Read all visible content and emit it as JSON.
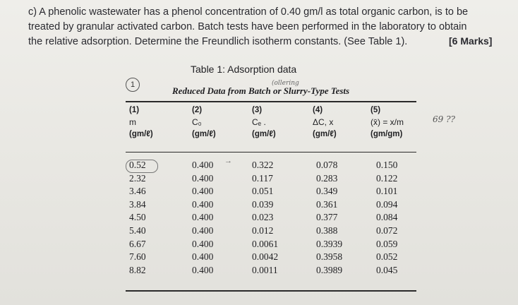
{
  "question": {
    "line1": "c) A phenolic wastewater has a phenol concentration of 0.40 gm/l as total organic carbon, is to be",
    "line2": "treated by granular activated carbon. Batch tests have been performed in the laboratory to obtain",
    "line3": "the relative adsorption. Determine the Freundlich isotherm constants. (See Table 1).",
    "marks": "[6 Marks]"
  },
  "table": {
    "title": "Table 1: Adsorption data",
    "caption": "Reduced Data from Batch or Slurry-Type Tests",
    "headers": [
      {
        "num": "(1)",
        "sym": "m",
        "unit": "(gm/ℓ)"
      },
      {
        "num": "(2)",
        "sym": "C₀",
        "unit": "(gm/ℓ)"
      },
      {
        "num": "(3)",
        "sym": "Cₑ .",
        "unit": "(gm/ℓ)"
      },
      {
        "num": "(4)",
        "sym": "ΔC, x",
        "unit": "(gm/ℓ)"
      },
      {
        "num": "(5)",
        "sym": "(x̄) = x/m",
        "unit": "(gm/gm)"
      }
    ],
    "rows": [
      [
        "0.52",
        "0.400",
        "0.322",
        "0.078",
        "0.150"
      ],
      [
        "2.32",
        "0.400",
        "0.117",
        "0.283",
        "0.122"
      ],
      [
        "3.46",
        "0.400",
        "0.051",
        "0.349",
        "0.101"
      ],
      [
        "3.84",
        "0.400",
        "0.039",
        "0.361",
        "0.094"
      ],
      [
        "4.50",
        "0.400",
        "0.023",
        "0.377",
        "0.084"
      ],
      [
        "5.40",
        "0.400",
        "0.012",
        "0.388",
        "0.072"
      ],
      [
        "6.67",
        "0.400",
        "0.0061",
        "0.3939",
        "0.059"
      ],
      [
        "7.60",
        "0.400",
        "0.0042",
        "0.3958",
        "0.052"
      ],
      [
        "8.82",
        "0.400",
        "0.0011",
        "0.3989",
        "0.045"
      ]
    ]
  },
  "annotations": {
    "circled_number": "1",
    "top_note": "(ollering",
    "margin_note": "69 ??",
    "arrow": "→"
  }
}
